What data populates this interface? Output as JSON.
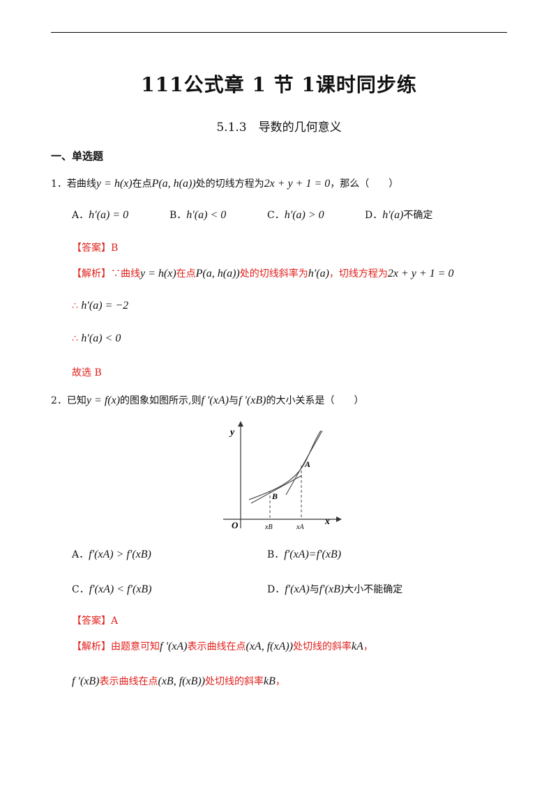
{
  "document": {
    "title": "111公式章 1 节 1课时同步练",
    "subtitle": "5.1.3　导数的几何意义",
    "section_title": "一、单选题"
  },
  "q1": {
    "number": "1．",
    "text_a": "若曲线",
    "eq_curve": "y = h(x)",
    "text_b": "在点",
    "eq_point": "P(a, h(a))",
    "text_c": "处的切线方程为",
    "eq_tangent": "2x + y + 1 = 0",
    "text_d": "，那么（　　）",
    "options": [
      {
        "label": "A．",
        "expr": "h′(a) = 0",
        "suffix": ""
      },
      {
        "label": "B．",
        "expr": "h′(a) < 0",
        "suffix": ""
      },
      {
        "label": "C．",
        "expr": "h′(a) > 0",
        "suffix": ""
      },
      {
        "label": "D．",
        "expr": "h′(a)",
        "suffix": "不确定"
      }
    ],
    "answer": "【答案】B",
    "analysis_tag": "【解析】",
    "analysis_1a": "∵曲线",
    "analysis_1b": "在点",
    "analysis_1c": "处的切线斜率为",
    "analysis_1d": "，切线方程为",
    "analysis_slope": "h′(a)",
    "step_sym": "∴",
    "step1": "h′(a) = −2",
    "step2": "h′(a) < 0",
    "conclusion": "故选 B"
  },
  "q2": {
    "number": "2．",
    "text_a": "已知",
    "eq_func": "y = f(x)",
    "text_b": "的图象如图所示,则",
    "fxa": "f ′(xA)",
    "text_c": "与",
    "fxb": "f ′(xB)",
    "text_d": "的大小关系是（　　）",
    "graph": {
      "y_label": "y",
      "x_label": "x",
      "origin": "O",
      "xb_label": "xB",
      "xa_label": "xA",
      "point_b": "B",
      "point_a": "A"
    },
    "options": [
      {
        "label": "A．",
        "expr": "f′(xA) > f′(xB)",
        "suffix": ""
      },
      {
        "label": "B．",
        "expr": "f′(xA)=f′(xB)",
        "suffix": ""
      },
      {
        "label": "C．",
        "expr": "f′(xA) < f′(xB)",
        "suffix": ""
      },
      {
        "label": "D．",
        "expr": "f′(xA)",
        "mid": "与",
        "expr2": "f′(xB)",
        "suffix": "大小不能确定"
      }
    ],
    "answer": "【答案】A",
    "analysis_tag": "【解析】",
    "analysis_1a": "由题意可知",
    "analysis_1b": "表示曲线在点",
    "analysis_1c": "处切线的斜率",
    "expr_fxa": "f ′(xA)",
    "point_a_expr": "(xA, f(xA))",
    "ka": "kA",
    "comma": "，",
    "expr_fxb": "f ′(xB)",
    "analysis_2a": "表示曲线在点",
    "point_b_expr": "(xB, f(xB))",
    "analysis_2b": "处切线的斜率",
    "kb": "kB"
  },
  "colors": {
    "answer_red": "#e0201b",
    "text": "#111111"
  }
}
